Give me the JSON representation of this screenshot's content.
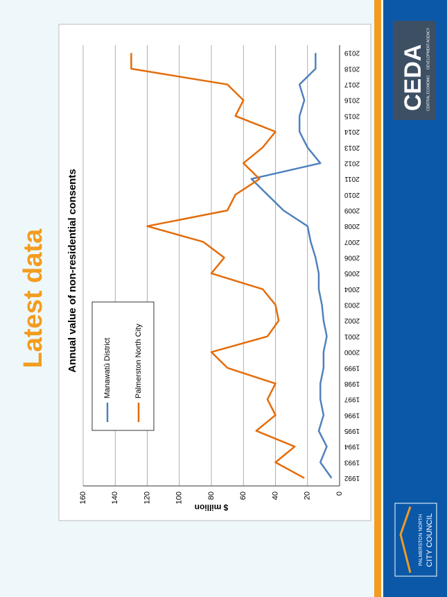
{
  "slide_title": "Latest data",
  "logos": {
    "ceda_name": "CEDA",
    "ceda_line1": "CENTRAL ECONOMIC",
    "ceda_line2": "DEVELOPMENT AGENCY",
    "council_line1": "PALMERSTON NORTH",
    "council_line2": "CITY COUNCIL"
  },
  "chart_data": {
    "type": "line",
    "title": "Annual value of non-residential consents",
    "y_label": "$ million",
    "categories": [
      "1992",
      "1993",
      "1994",
      "1995",
      "1996",
      "1997",
      "1998",
      "1999",
      "2000",
      "2001",
      "2002",
      "2003",
      "2004",
      "2005",
      "2006",
      "2007",
      "2008",
      "2009",
      "2010",
      "2011",
      "2012",
      "2013",
      "2014",
      "2015",
      "2016",
      "2017",
      "2018",
      "2019"
    ],
    "series": [
      {
        "name": "Manawatū District",
        "color": "#4f81bd",
        "values": [
          5,
          12,
          8,
          13,
          10,
          12,
          12,
          10,
          10,
          8,
          10,
          11,
          13,
          13,
          15,
          18,
          20,
          35,
          45,
          55,
          12,
          20,
          25,
          25,
          22,
          25,
          15,
          15
        ]
      },
      {
        "name": "Palmerston North City",
        "color": "#e46c0a",
        "values": [
          22,
          40,
          28,
          52,
          40,
          45,
          40,
          70,
          80,
          45,
          38,
          40,
          48,
          80,
          72,
          85,
          120,
          70,
          65,
          50,
          60,
          48,
          40,
          65,
          60,
          70,
          130,
          130
        ]
      }
    ],
    "ylim": [
      0,
      160
    ],
    "yticks": [
      0,
      20,
      40,
      60,
      80,
      100,
      120,
      140,
      160
    ],
    "grid": true,
    "legend": "upper-left"
  }
}
